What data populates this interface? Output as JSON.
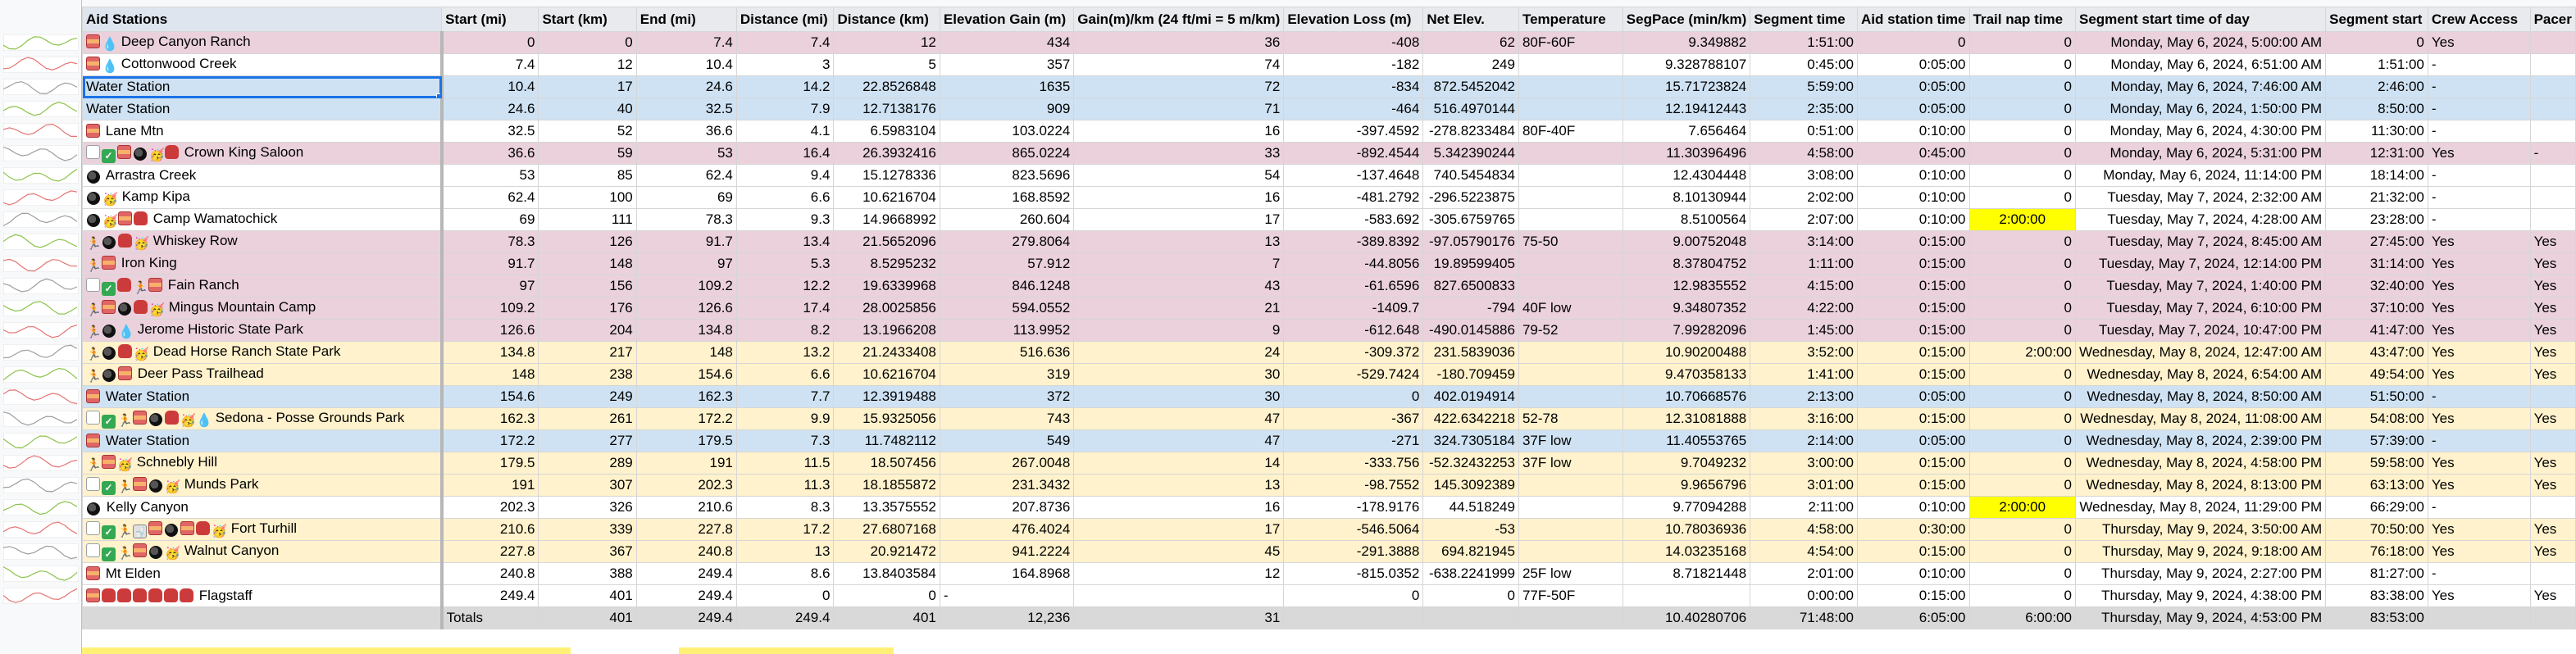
{
  "headers": [
    "Aid Stations",
    "Start (mi)",
    "Start (km)",
    "End (mi)",
    "Distance (mi)",
    "Distance (km)",
    "Elevation Gain (m)",
    "Gain(m)/km (24 ft/mi = 5 m/km)",
    "Elevation Loss (m)",
    "Net Elev.",
    "Temperature",
    "SegPace (min/km)",
    "Segment time",
    "Aid station time",
    "Trail nap time",
    "Segment start time of day",
    "Segment start",
    "Crew Access",
    "Pacer"
  ],
  "rows": [
    {
      "cls": "pink",
      "icons": [
        "flag",
        "drop"
      ],
      "name": "Deep Canyon Ranch",
      "v": [
        "0",
        "0",
        "7.4",
        "7.4",
        "12",
        "434",
        "36",
        "-408",
        "62",
        "80F-60F",
        "9.349882",
        "1:51:00",
        "0",
        "0",
        "Monday, May 6, 2024, 5:00:00 AM",
        "0",
        "Yes",
        ""
      ]
    },
    {
      "cls": "wht",
      "icons": [
        "flag",
        "drop"
      ],
      "name": "Cottonwood Creek",
      "v": [
        "7.4",
        "12",
        "10.4",
        "3",
        "5",
        "357",
        "74",
        "-182",
        "249",
        "",
        "9.328788107",
        "0:45:00",
        "0:05:00",
        "0",
        "Monday, May 6, 2024, 6:51:00 AM",
        "1:51:00",
        "-",
        ""
      ]
    },
    {
      "cls": "blue",
      "icons": [],
      "name": "Water Station",
      "v": [
        "10.4",
        "17",
        "24.6",
        "14.2",
        "22.8526848",
        "1635",
        "72",
        "-834",
        "872.5452042",
        "",
        "15.71723824",
        "5:59:00",
        "0:05:00",
        "0",
        "Monday, May 6, 2024, 7:46:00 AM",
        "2:46:00",
        "-",
        ""
      ],
      "sel": true
    },
    {
      "cls": "blue",
      "icons": [],
      "name": "Water Station",
      "v": [
        "24.6",
        "40",
        "32.5",
        "7.9",
        "12.7138176",
        "909",
        "71",
        "-464",
        "516.4970144",
        "",
        "12.19412443",
        "2:35:00",
        "0:05:00",
        "0",
        "Monday, May 6, 2024, 1:50:00 PM",
        "8:50:00",
        "-",
        ""
      ]
    },
    {
      "cls": "wht",
      "icons": [
        "flag"
      ],
      "name": "Lane Mtn",
      "v": [
        "32.5",
        "52",
        "36.6",
        "4.1",
        "6.5983104",
        "103.0224",
        "16",
        "-397.4592",
        "-278.8233484",
        "80F-40F",
        "7.656464",
        "0:51:00",
        "0:10:00",
        "0",
        "Monday, May 6, 2024, 4:30:00 PM",
        "11:30:00",
        "-",
        ""
      ]
    },
    {
      "cls": "pink",
      "icons": [
        "box",
        "check",
        "flag",
        "bowl",
        "emoji",
        "bag"
      ],
      "name": "Crown King Saloon",
      "v": [
        "36.6",
        "59",
        "53",
        "16.4",
        "26.3932416",
        "865.0224",
        "33",
        "-892.4544",
        "5.342390244",
        "",
        "11.30396496",
        "4:58:00",
        "0:45:00",
        "0",
        "Monday, May 6, 2024, 5:31:00 PM",
        "12:31:00",
        "Yes",
        "-"
      ]
    },
    {
      "cls": "wht",
      "icons": [
        "bowl"
      ],
      "name": "Arrastra Creek",
      "v": [
        "53",
        "85",
        "62.4",
        "9.4",
        "15.1278336",
        "823.5696",
        "54",
        "-137.4648",
        "740.5454834",
        "",
        "12.4304448",
        "3:08:00",
        "0:10:00",
        "0",
        "Monday, May 6, 2024, 11:14:00 PM",
        "18:14:00",
        "-",
        ""
      ]
    },
    {
      "cls": "wht",
      "icons": [
        "bowl",
        "emoji"
      ],
      "name": "Kamp Kipa",
      "v": [
        "62.4",
        "100",
        "69",
        "6.6",
        "10.6216704",
        "168.8592",
        "16",
        "-481.2792",
        "-296.5223875",
        "",
        "8.10130944",
        "2:02:00",
        "0:10:00",
        "0",
        "Tuesday, May 7, 2024, 2:32:00 AM",
        "21:32:00",
        "-",
        ""
      ]
    },
    {
      "cls": "wht",
      "icons": [
        "bowl",
        "emoji",
        "flag",
        "bag"
      ],
      "name": "Camp Wamatochick",
      "v": [
        "69",
        "111",
        "78.3",
        "9.3",
        "14.9668992",
        "260.604",
        "17",
        "-583.692",
        "-305.6759765",
        "",
        "8.5100564",
        "2:07:00",
        "0:10:00",
        "2:00:00",
        "Tuesday, May 7, 2024, 4:28:00 AM",
        "23:28:00",
        "-",
        ""
      ],
      "hl": true
    },
    {
      "cls": "pink",
      "icons": [
        "run",
        "bowl",
        "bag",
        "emoji"
      ],
      "name": "Whiskey Row",
      "v": [
        "78.3",
        "126",
        "91.7",
        "13.4",
        "21.5652096",
        "279.8064",
        "13",
        "-389.8392",
        "-97.05790176",
        "75-50",
        "9.00752048",
        "3:14:00",
        "0:15:00",
        "0",
        "Tuesday, May 7, 2024, 8:45:00 AM",
        "27:45:00",
        "Yes",
        "Yes"
      ]
    },
    {
      "cls": "pink",
      "icons": [
        "run",
        "flag"
      ],
      "name": "Iron King",
      "v": [
        "91.7",
        "148",
        "97",
        "5.3",
        "8.5295232",
        "57.912",
        "7",
        "-44.8056",
        "19.89599405",
        "",
        "8.37804752",
        "1:11:00",
        "0:15:00",
        "0",
        "Tuesday, May 7, 2024, 12:14:00 PM",
        "31:14:00",
        "Yes",
        "Yes"
      ]
    },
    {
      "cls": "pink",
      "icons": [
        "box",
        "check",
        "bag",
        "run",
        "flag"
      ],
      "name": "Fain Ranch",
      "v": [
        "97",
        "156",
        "109.2",
        "12.2",
        "19.6339968",
        "846.1248",
        "43",
        "-61.6596",
        "827.6500833",
        "",
        "12.9835552",
        "4:15:00",
        "0:15:00",
        "0",
        "Tuesday, May 7, 2024, 1:40:00 PM",
        "32:40:00",
        "Yes",
        "Yes"
      ]
    },
    {
      "cls": "pink",
      "icons": [
        "run",
        "flag",
        "bowl",
        "bag",
        "emoji"
      ],
      "name": "Mingus Mountain Camp",
      "v": [
        "109.2",
        "176",
        "126.6",
        "17.4",
        "28.0025856",
        "594.0552",
        "21",
        "-1409.7",
        "-794",
        "40F low",
        "9.34807352",
        "4:22:00",
        "0:15:00",
        "0",
        "Tuesday, May 7, 2024, 6:10:00 PM",
        "37:10:00",
        "Yes",
        "Yes"
      ]
    },
    {
      "cls": "pink",
      "icons": [
        "run",
        "bowl",
        "drop"
      ],
      "name": "Jerome Historic State Park",
      "v": [
        "126.6",
        "204",
        "134.8",
        "8.2",
        "13.1966208",
        "113.9952",
        "9",
        "-612.648",
        "-490.0145886",
        "79-52",
        "7.99282096",
        "1:45:00",
        "0:15:00",
        "0",
        "Tuesday, May 7, 2024, 10:47:00 PM",
        "41:47:00",
        "Yes",
        "Yes"
      ]
    },
    {
      "cls": "yel",
      "icons": [
        "run",
        "bowl",
        "bag",
        "emoji"
      ],
      "name": "Dead Horse Ranch State Park",
      "v": [
        "134.8",
        "217",
        "148",
        "13.2",
        "21.2433408",
        "516.636",
        "24",
        "-309.372",
        "231.5839036",
        "",
        "10.90200488",
        "3:52:00",
        "0:15:00",
        "2:00:00",
        "Wednesday, May 8, 2024, 12:47:00 AM",
        "43:47:00",
        "Yes",
        "Yes"
      ]
    },
    {
      "cls": "yel",
      "icons": [
        "run",
        "bowl",
        "flag"
      ],
      "name": "Deer Pass Trailhead",
      "v": [
        "148",
        "238",
        "154.6",
        "6.6",
        "10.6216704",
        "319",
        "30",
        "-529.7424",
        "-180.709459",
        "",
        "9.470358133",
        "1:41:00",
        "0:15:00",
        "0",
        "Wednesday, May 8, 2024, 6:54:00 AM",
        "49:54:00",
        "Yes",
        "Yes"
      ]
    },
    {
      "cls": "blue",
      "icons": [
        "flag"
      ],
      "name": "Water Station",
      "v": [
        "154.6",
        "249",
        "162.3",
        "7.7",
        "12.3919488",
        "372",
        "30",
        "0",
        "402.0194914",
        "",
        "10.70668576",
        "2:13:00",
        "0:05:00",
        "0",
        "Wednesday, May 8, 2024, 8:50:00 AM",
        "51:50:00",
        "-",
        ""
      ]
    },
    {
      "cls": "yel",
      "icons": [
        "box",
        "check",
        "run",
        "flag",
        "bowl",
        "bag",
        "emoji",
        "drop"
      ],
      "name": "Sedona - Posse Grounds Park",
      "v": [
        "162.3",
        "261",
        "172.2",
        "9.9",
        "15.9325056",
        "743",
        "47",
        "-367",
        "422.6342218",
        "52-78",
        "12.31081888",
        "3:16:00",
        "0:15:00",
        "0",
        "Wednesday, May 8, 2024, 11:08:00 AM",
        "54:08:00",
        "Yes",
        "Yes"
      ]
    },
    {
      "cls": "blue",
      "icons": [
        "flag"
      ],
      "name": "Water Station",
      "v": [
        "172.2",
        "277",
        "179.5",
        "7.3",
        "11.7482112",
        "549",
        "47",
        "-271",
        "324.7305184",
        "37F low",
        "11.40553765",
        "2:14:00",
        "0:05:00",
        "0",
        "Wednesday, May 8, 2024, 2:39:00 PM",
        "57:39:00",
        "-",
        ""
      ]
    },
    {
      "cls": "yel",
      "icons": [
        "run",
        "flag",
        "emoji"
      ],
      "name": "Schnebly Hill",
      "v": [
        "179.5",
        "289",
        "191",
        "11.5",
        "18.507456",
        "267.0048",
        "14",
        "-333.756",
        "-52.32432253",
        "37F low",
        "9.7049232",
        "3:00:00",
        "0:15:00",
        "0",
        "Wednesday, May 8, 2024, 4:58:00 PM",
        "59:58:00",
        "Yes",
        "Yes"
      ]
    },
    {
      "cls": "yel",
      "icons": [
        "box",
        "check",
        "run",
        "flag",
        "bowl",
        "emoji"
      ],
      "name": "Munds Park",
      "v": [
        "191",
        "307",
        "202.3",
        "11.3",
        "18.1855872",
        "231.3432",
        "13",
        "-98.7552",
        "145.3092389",
        "",
        "9.9656796",
        "3:01:00",
        "0:15:00",
        "0",
        "Wednesday, May 8, 2024, 8:13:00 PM",
        "63:13:00",
        "Yes",
        "Yes"
      ]
    },
    {
      "cls": "wht",
      "icons": [
        "bowl"
      ],
      "name": "Kelly Canyon",
      "v": [
        "202.3",
        "326",
        "210.6",
        "8.3",
        "13.3575552",
        "207.8736",
        "16",
        "-178.9176",
        "44.518249",
        "",
        "9.77094288",
        "2:11:00",
        "0:10:00",
        "2:00:00",
        "Wednesday, May 8, 2024, 11:29:00 PM",
        "66:29:00",
        "-",
        ""
      ],
      "hl": true
    },
    {
      "cls": "yel",
      "icons": [
        "box",
        "check",
        "run",
        "toilet",
        "flag",
        "bowl",
        "flag",
        "bag",
        "emoji"
      ],
      "name": "Fort Turhill",
      "v": [
        "210.6",
        "339",
        "227.8",
        "17.2",
        "27.6807168",
        "476.4024",
        "17",
        "-546.5064",
        "-53",
        "",
        "10.78036936",
        "4:58:00",
        "0:30:00",
        "0",
        "Thursday, May 9, 2024, 3:50:00 AM",
        "70:50:00",
        "Yes",
        "Yes"
      ]
    },
    {
      "cls": "yel",
      "icons": [
        "box",
        "check",
        "run",
        "flag",
        "bowl",
        "emoji"
      ],
      "name": "Walnut Canyon",
      "v": [
        "227.8",
        "367",
        "240.8",
        "13",
        "20.921472",
        "941.2224",
        "45",
        "-291.3888",
        "694.821945",
        "",
        "14.03235168",
        "4:54:00",
        "0:15:00",
        "0",
        "Thursday, May 9, 2024, 9:18:00 AM",
        "76:18:00",
        "Yes",
        "Yes"
      ]
    },
    {
      "cls": "wht",
      "icons": [
        "flag"
      ],
      "name": "Mt Elden",
      "v": [
        "240.8",
        "388",
        "249.4",
        "8.6",
        "13.8403584",
        "164.8968",
        "12",
        "-815.0352",
        "-638.2241999",
        "25F low",
        "8.71821448",
        "2:01:00",
        "0:10:00",
        "0",
        "Thursday, May 9, 2024, 2:27:00 PM",
        "81:27:00",
        "-",
        ""
      ]
    },
    {
      "cls": "wht",
      "icons": [
        "flag",
        "bag",
        "bag",
        "bag",
        "bag",
        "bag",
        "bag"
      ],
      "name": "Flagstaff",
      "v": [
        "249.4",
        "401",
        "249.4",
        "0",
        "0",
        "-",
        "",
        "0",
        "0",
        "77F-50F",
        "",
        "0:00:00",
        "0:15:00",
        "0",
        "Thursday, May 9, 2024, 4:38:00 PM",
        "83:38:00",
        "Yes",
        "Yes"
      ]
    }
  ],
  "totals": [
    "Totals",
    "401",
    "249.4",
    "249.4",
    "401",
    "12,236",
    "31",
    "",
    "",
    "",
    "10.40280706",
    "71:48:00",
    "6:05:00",
    "6:00:00",
    "Thursday, May 9, 2024, 4:53:00 PM",
    "83:53:00",
    "",
    ""
  ],
  "colors": {
    "pink": "#ead1dc",
    "blue": "#cfe2f3",
    "yellow": "#fff2cc",
    "highlight": "#ffff00",
    "selection": "#1a73e8"
  }
}
